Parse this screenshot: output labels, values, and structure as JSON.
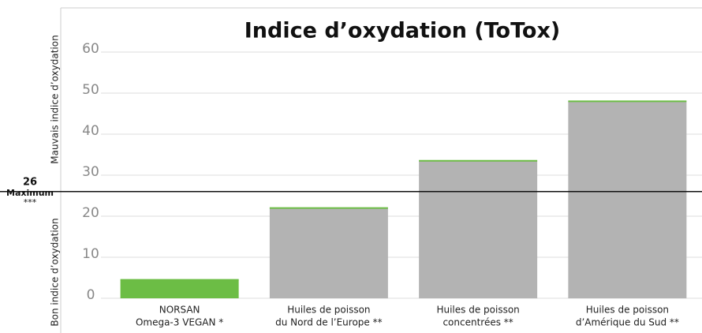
{
  "chart_data": {
    "type": "bar",
    "title": "Indice d’oxydation (ToTox)",
    "categories": [
      [
        "NORSAN",
        "Omega-3 VEGAN *"
      ],
      [
        "Huiles de poisson",
        "du Nord de l’Europe **"
      ],
      [
        "Huiles de poisson",
        "concentrées **"
      ],
      [
        "Huiles de poisson",
        "d’Amérique du Sud **"
      ]
    ],
    "values": [
      4.5,
      22,
      33.5,
      48
    ],
    "colors": [
      "#6cbd45",
      "#b3b3b3",
      "#b3b3b3",
      "#b3b3b3"
    ],
    "top_color": "#6cbd45",
    "ylim": [
      0,
      60
    ],
    "yticks": [
      0,
      10,
      20,
      30,
      40,
      50,
      60
    ],
    "grid": true,
    "y_labels": {
      "upper": "Mauvais indice d’oxydation",
      "lower": "Bon indice d’oxydation"
    },
    "reference": {
      "value": 26,
      "text": "Maximum",
      "note": "***"
    }
  }
}
